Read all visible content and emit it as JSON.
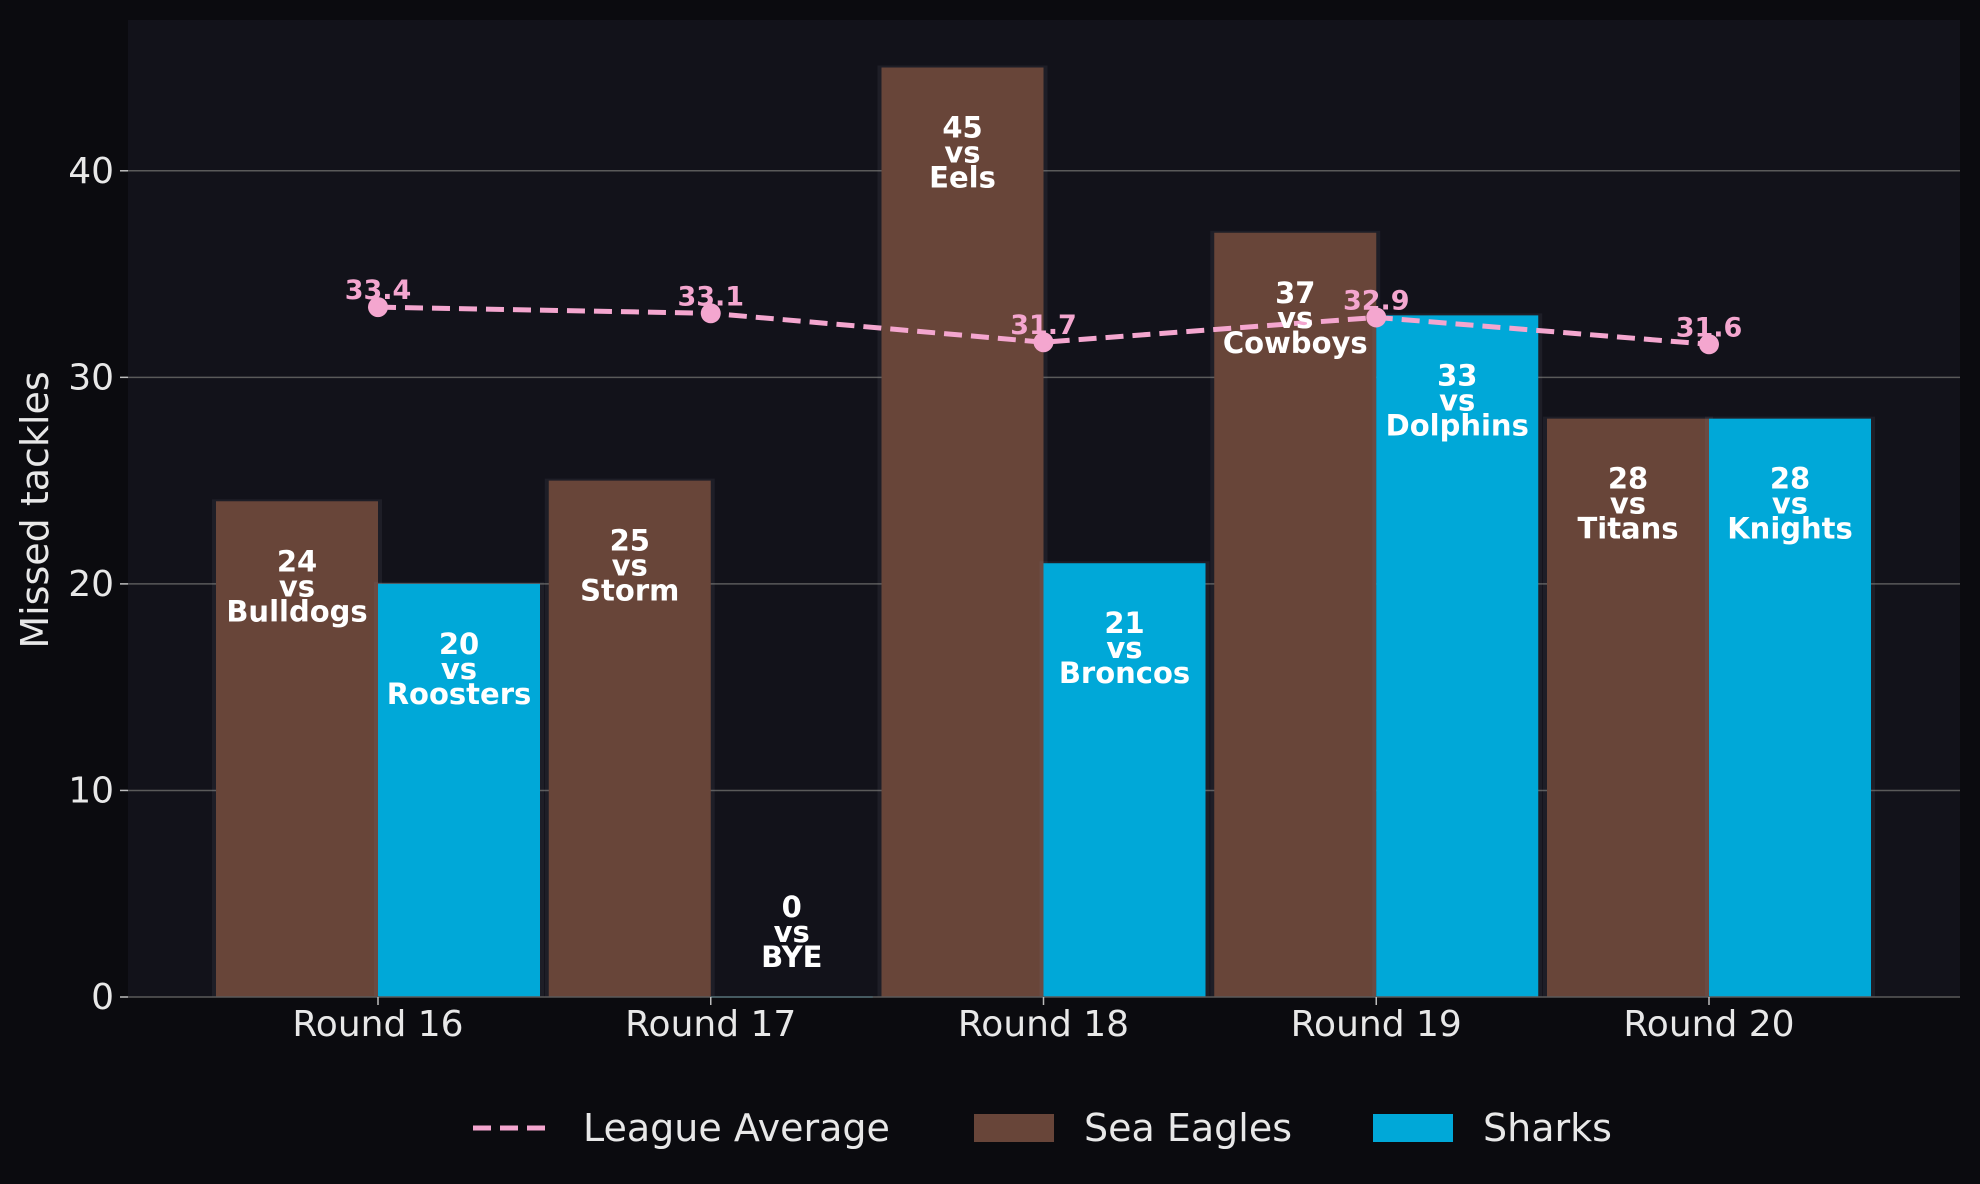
{
  "chart_data": {
    "type": "bar",
    "categories": [
      "Round 16",
      "Round 17",
      "Round 18",
      "Round 19",
      "Round 20"
    ],
    "ylabel": "Missed tackles",
    "ylim": [
      0,
      47.3
    ],
    "yticks": [
      0,
      10,
      20,
      30,
      40
    ],
    "grid": "horizontal",
    "legend_position": "bottom",
    "series": [
      {
        "name": "Sea Eagles",
        "color": "#684539",
        "values": [
          24,
          25,
          45,
          37,
          28
        ],
        "labels": [
          [
            "24",
            "vs",
            "Bulldogs"
          ],
          [
            "25",
            "vs",
            "Storm"
          ],
          [
            "45",
            "vs",
            "Eels"
          ],
          [
            "37",
            "vs",
            "Cowboys"
          ],
          [
            "28",
            "vs",
            "Titans"
          ]
        ]
      },
      {
        "name": "Sharks",
        "color": "#00a8d8",
        "values": [
          20,
          0,
          21,
          33,
          28
        ],
        "labels": [
          [
            "20",
            "vs",
            "Roosters"
          ],
          [
            "0",
            "vs",
            "BYE"
          ],
          [
            "21",
            "vs",
            "Broncos"
          ],
          [
            "33",
            "vs",
            "Dolphins"
          ],
          [
            "28",
            "vs",
            "Knights"
          ]
        ]
      }
    ],
    "league_average": {
      "name": "League Average",
      "color": "#f4a6cf",
      "style": "dashed",
      "values": [
        33.4,
        33.1,
        31.7,
        32.9,
        31.6
      ],
      "labels": [
        "33.4",
        "33.1",
        "31.7",
        "32.9",
        "31.6"
      ]
    },
    "legend": [
      "League Average",
      "Sea Eagles",
      "Sharks"
    ]
  }
}
